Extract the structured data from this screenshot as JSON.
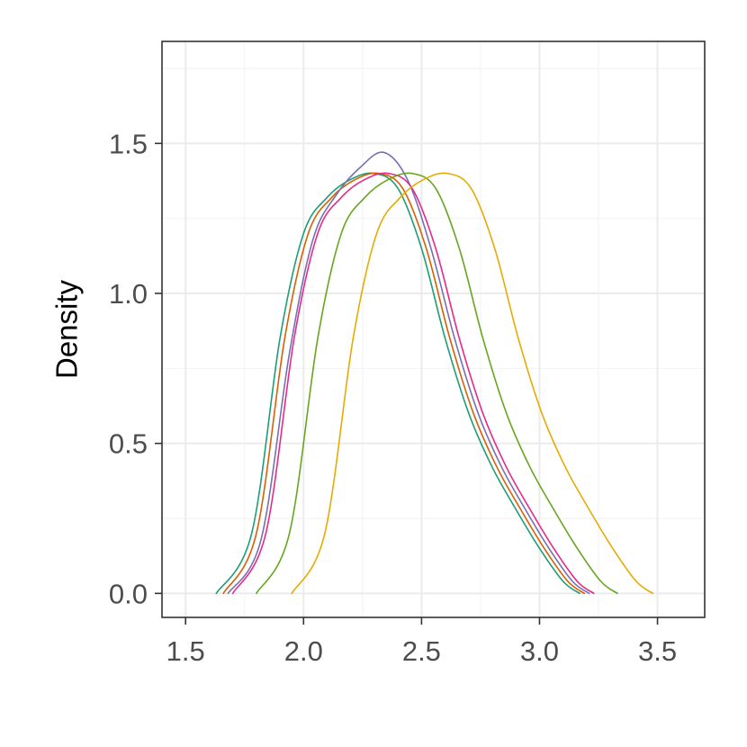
{
  "chart_data": {
    "type": "line",
    "title": "",
    "xlabel": "",
    "ylabel": "Density",
    "xlim": [
      1.4,
      3.7
    ],
    "ylim": [
      -0.08,
      1.84
    ],
    "x_ticks": [
      1.5,
      2.0,
      2.5,
      3.0,
      3.5
    ],
    "x_tick_labels": [
      "1.5",
      "2.0",
      "2.5",
      "3.0",
      "3.5"
    ],
    "y_ticks": [
      0.0,
      0.5,
      1.0,
      1.5
    ],
    "y_tick_labels": [
      "0.0",
      "0.5",
      "1.0",
      "1.5"
    ],
    "grid": true,
    "legend": "none",
    "colors": [
      "#1b9e77",
      "#d95f02",
      "#7570b3",
      "#e7298a",
      "#66a61e",
      "#e6ab02",
      "#a6761d"
    ],
    "series": [
      {
        "x": [
          1.63,
          1.78,
          1.9,
          2.0,
          2.1,
          2.2,
          2.3,
          2.4,
          2.5,
          2.6,
          2.7,
          2.8,
          2.9,
          3.0,
          3.1,
          3.17
        ],
        "y": [
          0.0,
          0.2,
          0.85,
          1.2,
          1.32,
          1.38,
          1.4,
          1.35,
          1.15,
          0.85,
          0.6,
          0.42,
          0.28,
          0.15,
          0.04,
          0.0
        ]
      },
      {
        "x": [
          1.66,
          1.8,
          1.92,
          2.02,
          2.12,
          2.22,
          2.32,
          2.42,
          2.52,
          2.62,
          2.72,
          2.82,
          2.92,
          3.02,
          3.12,
          3.19
        ],
        "y": [
          0.0,
          0.2,
          0.85,
          1.2,
          1.32,
          1.38,
          1.4,
          1.35,
          1.15,
          0.85,
          0.6,
          0.42,
          0.28,
          0.15,
          0.04,
          0.0
        ]
      },
      {
        "x": [
          1.68,
          1.82,
          1.94,
          2.04,
          2.14,
          2.24,
          2.34,
          2.44,
          2.54,
          2.64,
          2.74,
          2.84,
          2.94,
          3.04,
          3.14,
          3.21
        ],
        "y": [
          0.0,
          0.18,
          0.8,
          1.18,
          1.33,
          1.42,
          1.47,
          1.38,
          1.15,
          0.85,
          0.6,
          0.42,
          0.28,
          0.15,
          0.04,
          0.0
        ]
      },
      {
        "x": [
          1.7,
          1.84,
          1.96,
          2.06,
          2.16,
          2.26,
          2.36,
          2.46,
          2.56,
          2.66,
          2.76,
          2.86,
          2.96,
          3.06,
          3.16,
          3.23
        ],
        "y": [
          0.0,
          0.2,
          0.85,
          1.2,
          1.32,
          1.38,
          1.4,
          1.35,
          1.15,
          0.85,
          0.6,
          0.42,
          0.28,
          0.15,
          0.04,
          0.0
        ]
      },
      {
        "x": [
          1.8,
          1.94,
          2.06,
          2.16,
          2.26,
          2.36,
          2.46,
          2.56,
          2.66,
          2.76,
          2.86,
          2.96,
          3.06,
          3.16,
          3.26,
          3.33
        ],
        "y": [
          0.0,
          0.2,
          0.85,
          1.2,
          1.32,
          1.38,
          1.4,
          1.35,
          1.15,
          0.85,
          0.6,
          0.42,
          0.28,
          0.15,
          0.04,
          0.0
        ]
      },
      {
        "x": [
          1.95,
          2.09,
          2.21,
          2.31,
          2.41,
          2.51,
          2.61,
          2.71,
          2.81,
          2.91,
          3.01,
          3.11,
          3.21,
          3.31,
          3.41,
          3.48
        ],
        "y": [
          0.0,
          0.2,
          0.85,
          1.2,
          1.32,
          1.38,
          1.4,
          1.35,
          1.15,
          0.85,
          0.6,
          0.42,
          0.28,
          0.15,
          0.04,
          0.0
        ]
      }
    ]
  }
}
